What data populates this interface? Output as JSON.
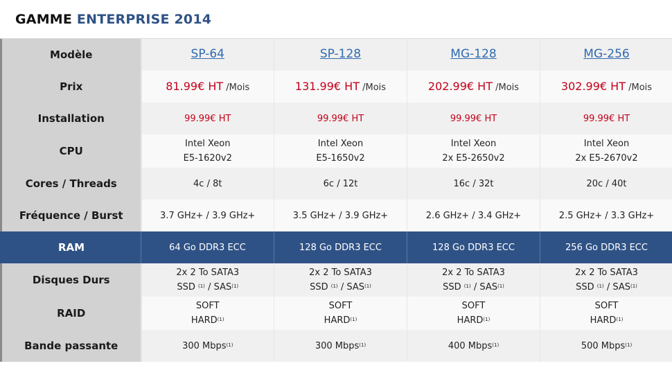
{
  "header": {
    "title_part1": "GAMME",
    "title_part2": "ENTERPRISE 2014"
  },
  "rows": {
    "modele": {
      "label": "Modèle",
      "values": [
        "SP-64",
        "SP-128",
        "MG-128",
        "MG-256"
      ]
    },
    "prix": {
      "label": "Prix",
      "values": [
        "81.99€ HT",
        "131.99€ HT",
        "202.99€ HT",
        "302.99€ HT"
      ],
      "suffix": "/Mois"
    },
    "installation": {
      "label": "Installation",
      "values": [
        "99.99€ HT",
        "99.99€ HT",
        "99.99€ HT",
        "99.99€ HT"
      ]
    },
    "cpu": {
      "label": "CPU",
      "line1": [
        "Intel Xeon",
        "Intel Xeon",
        "Intel Xeon",
        "Intel Xeon"
      ],
      "line2": [
        "E5-1620v2",
        "E5-1650v2",
        "2x E5-2650v2",
        "2x E5-2670v2"
      ]
    },
    "cores": {
      "label": "Cores / Threads",
      "values": [
        "4c / 8t",
        "6c / 12t",
        "16c / 32t",
        "20c / 40t"
      ]
    },
    "frequence": {
      "label": "Fréquence / Burst",
      "values": [
        "3.7 GHz+ / 3.9 GHz+",
        "3.5 GHz+ / 3.9 GHz+",
        "2.6 GHz+ / 3.4 GHz+",
        "2.5 GHz+ / 3.3 GHz+"
      ]
    },
    "ram": {
      "label": "RAM",
      "values": [
        "64 Go DDR3 ECC",
        "128 Go DDR3 ECC",
        "128 Go DDR3 ECC",
        "256 Go DDR3 ECC"
      ]
    },
    "disques": {
      "label": "Disques Durs",
      "line1": "2x 2 To SATA3",
      "ssd": "SSD",
      "sep": "/",
      "sas": "SAS"
    },
    "raid": {
      "label": "RAID",
      "line1": "SOFT",
      "line2": "HARD"
    },
    "bande": {
      "label": "Bande passante",
      "values": [
        "300 Mbps",
        "300 Mbps",
        "400 Mbps",
        "500 Mbps"
      ]
    },
    "footnote_mark": "(1)"
  },
  "colors": {
    "accent": "#2f5286",
    "price_red": "#c4001a",
    "link": "#2f6ab0"
  }
}
